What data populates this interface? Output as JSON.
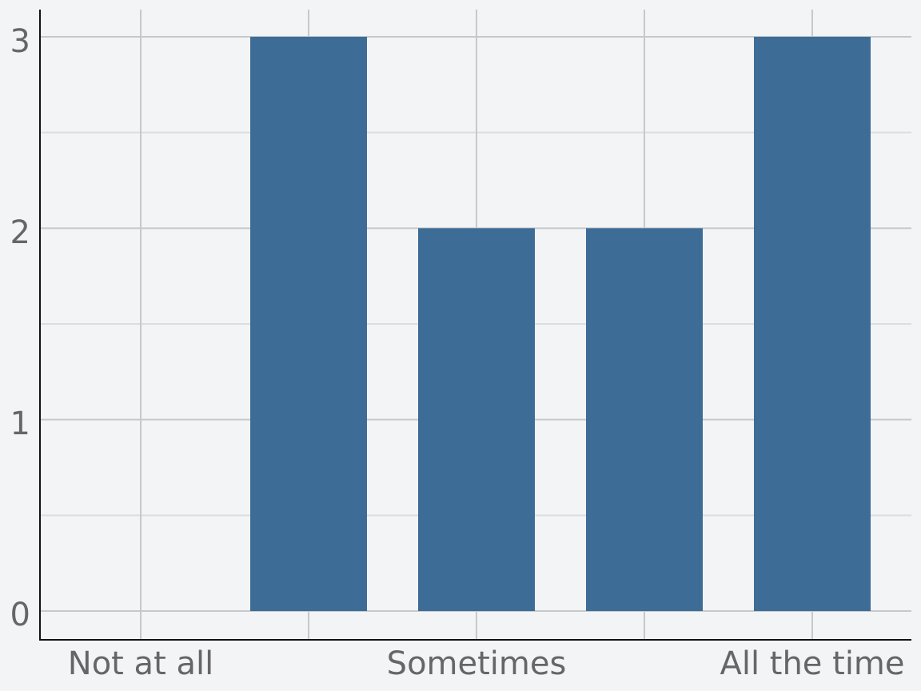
{
  "chart_data": {
    "type": "bar",
    "categories": [
      "Not at all",
      "",
      "Sometimes",
      "",
      "All the time"
    ],
    "values": [
      0,
      3,
      2,
      2,
      3
    ],
    "xlabel": "",
    "ylabel": "",
    "ylim": [
      0,
      3
    ],
    "yticks": [
      "0",
      "1",
      "2",
      "3"
    ],
    "grid": true,
    "colors": {
      "bar": "#3d6d96",
      "background": "#f3f4f6",
      "grid": "#c7c8cb",
      "tick_text": "#666666",
      "axis": "#111111"
    }
  }
}
